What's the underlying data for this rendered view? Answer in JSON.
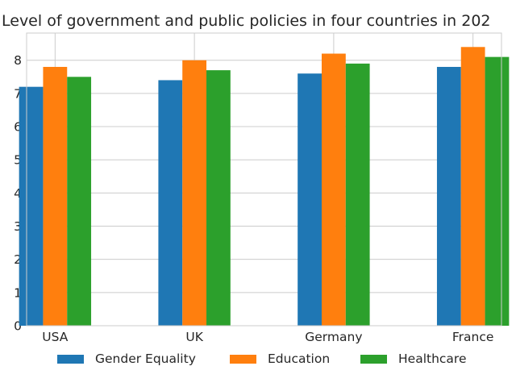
{
  "chart_data": {
    "type": "bar",
    "title": "Level of government and public policies in four countries in 202",
    "xlabel": "",
    "ylabel": "",
    "categories": [
      "USA",
      "UK",
      "Germany",
      "France"
    ],
    "series": [
      {
        "name": "Gender Equality",
        "values": [
          7.2,
          7.4,
          7.6,
          7.8
        ],
        "color": "#1f77b4"
      },
      {
        "name": "Education",
        "values": [
          7.8,
          8.0,
          8.2,
          8.4
        ],
        "color": "#ff7f0e"
      },
      {
        "name": "Healthcare",
        "values": [
          7.5,
          7.7,
          7.9,
          8.1
        ],
        "color": "#2ca02c"
      }
    ],
    "ylim": [
      0,
      8.82
    ],
    "yticks": [
      0,
      1,
      2,
      3,
      4,
      5,
      6,
      7,
      8
    ],
    "grid": true,
    "legend_position": "bottom-center"
  }
}
